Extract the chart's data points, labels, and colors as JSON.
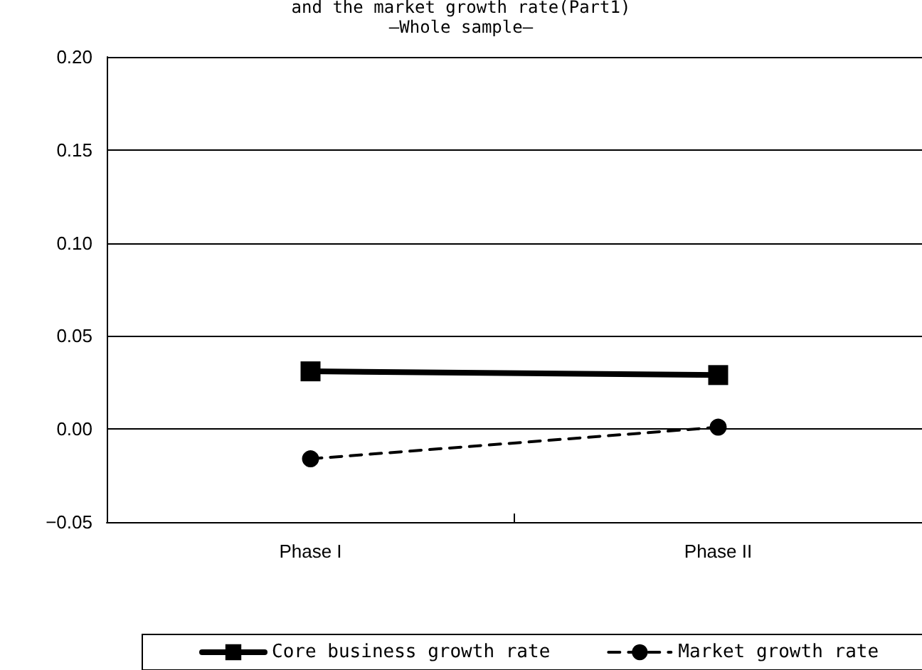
{
  "chart_data": {
    "type": "line",
    "title": "and the market growth rate(Part1)",
    "subtitle": "—Whole sample—",
    "categories": [
      "Phase I",
      "Phase II"
    ],
    "series": [
      {
        "name": "Core business growth rate",
        "color": "#000000",
        "values": [
          0.031,
          0.029
        ],
        "marker": "square",
        "line_style": "solid"
      },
      {
        "name": "Market growth rate",
        "color": "#000000",
        "values": [
          -0.016,
          0.001
        ],
        "marker": "circle",
        "line_style": "dashed"
      }
    ],
    "ylim": [
      -0.05,
      0.2
    ],
    "yticks": [
      {
        "value": -0.05,
        "label": "−0.05"
      },
      {
        "value": 0,
        "label": "0.00"
      },
      {
        "value": 0.05,
        "label": "0.05"
      },
      {
        "value": 0.1,
        "label": "0.10"
      },
      {
        "value": 0.15,
        "label": "0.15"
      },
      {
        "value": 0.2,
        "label": "0.20"
      }
    ],
    "grid": "y",
    "legend": "bottom"
  }
}
